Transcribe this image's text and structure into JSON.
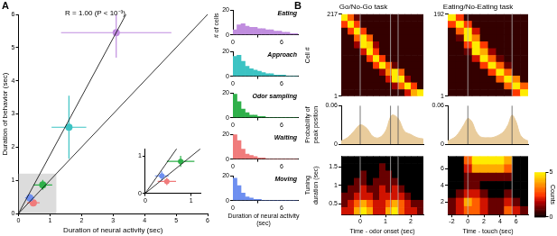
{
  "chart_data": [
    {
      "type": "scatter",
      "panel": "A",
      "xlabel": "Duration of neural activity (sec)",
      "ylabel": "Duration of behavior (sec)",
      "xlim": [
        0,
        6
      ],
      "ylim": [
        0,
        6
      ],
      "xticks": [
        0,
        1,
        2,
        3,
        4,
        5,
        6
      ],
      "yticks": [
        0,
        1,
        2,
        3,
        4,
        5,
        6
      ],
      "x": [
        3.1,
        1.6,
        0.77,
        0.47,
        0.36
      ],
      "values": [
        5.45,
        2.6,
        0.86,
        0.32,
        0.47
      ],
      "x_err": [
        1.75,
        0.55,
        0.3,
        0.2,
        0.15
      ],
      "y_err": [
        0.75,
        0.95,
        0.15,
        0.1,
        0.12
      ],
      "colors": [
        "#c08ddf",
        "#3cc3c3",
        "#2fb04a",
        "#f07b7b",
        "#6e8ff0"
      ],
      "annotations": [
        "R = 1.00 (P < 10⁻³)"
      ],
      "lines": [
        {
          "slope": 1,
          "intercept": 0
        },
        {
          "slope": 1.76,
          "intercept": 0
        }
      ],
      "inset": {
        "xlim": [
          0,
          1.2
        ],
        "ylim": [
          0,
          1.2
        ],
        "xticks": [
          0,
          1
        ],
        "yticks": [
          0,
          1
        ]
      }
    },
    {
      "type": "histogram",
      "title": "Eating",
      "ylabel": "# of cells",
      "color": "#c08ddf",
      "bins": [
        0,
        0.5,
        1,
        1.5,
        2,
        2.5,
        3,
        3.5,
        4,
        4.5,
        5,
        5.5,
        6,
        6.5,
        7,
        7.5,
        8
      ],
      "counts": [
        4,
        8,
        9,
        7,
        6,
        6,
        5,
        5,
        4,
        4,
        3,
        3,
        2,
        2,
        1,
        1
      ],
      "xlim": [
        0,
        8
      ],
      "ylim": [
        0,
        20
      ],
      "xticks": [
        0,
        6
      ],
      "yticks": [
        0,
        20
      ]
    },
    {
      "type": "histogram",
      "title": "Approach",
      "color": "#3cc3c3",
      "bins": [
        0,
        0.5,
        1,
        1.5,
        2,
        2.5,
        3,
        3.5,
        4,
        4.5,
        5,
        5.5,
        6,
        6.5,
        7,
        7.5,
        8
      ],
      "counts": [
        16,
        17,
        12,
        8,
        6,
        5,
        4,
        3,
        2,
        2,
        1,
        1,
        1,
        0,
        0,
        0
      ],
      "xlim": [
        0,
        8
      ],
      "ylim": [
        0,
        20
      ],
      "xticks": [
        0,
        6
      ],
      "yticks": [
        0,
        20
      ]
    },
    {
      "type": "histogram",
      "title": "Odor sampling",
      "color": "#2fb04a",
      "bins": [
        0,
        0.5,
        1,
        1.5,
        2,
        2.5,
        3,
        3.5,
        4,
        4.5,
        5,
        5.5,
        6,
        6.5,
        7,
        7.5,
        8
      ],
      "counts": [
        19,
        13,
        7,
        4,
        2,
        2,
        1,
        1,
        0,
        0,
        0,
        0,
        0,
        0,
        0,
        0
      ],
      "xlim": [
        0,
        8
      ],
      "ylim": [
        0,
        20
      ],
      "xticks": [
        0,
        6
      ],
      "yticks": [
        0,
        20
      ]
    },
    {
      "type": "histogram",
      "title": "Waiting",
      "color": "#f07b7b",
      "bins": [
        0,
        0.5,
        1,
        1.5,
        2,
        2.5,
        3,
        3.5,
        4,
        4.5,
        5,
        5.5,
        6,
        6.5,
        7,
        7.5,
        8
      ],
      "counts": [
        20,
        15,
        8,
        4,
        3,
        2,
        1,
        1,
        0,
        0,
        0,
        0,
        0,
        0,
        0,
        0
      ],
      "xlim": [
        0,
        8
      ],
      "ylim": [
        0,
        20
      ],
      "xticks": [
        0,
        6
      ],
      "yticks": [
        0,
        20
      ]
    },
    {
      "type": "histogram",
      "title": "Moving",
      "xlabel": "Duration of neural activity (sec)",
      "color": "#6e8ff0",
      "bins": [
        0,
        0.5,
        1,
        1.5,
        2,
        2.5,
        3,
        3.5,
        4,
        4.5,
        5,
        5.5,
        6,
        6.5,
        7,
        7.5,
        8
      ],
      "counts": [
        18,
        12,
        6,
        3,
        2,
        1,
        1,
        0,
        0,
        0,
        0,
        0,
        0,
        0,
        0,
        0
      ],
      "xlim": [
        0,
        8
      ],
      "ylim": [
        0,
        20
      ],
      "xticks": [
        0,
        6
      ],
      "yticks": [
        0,
        20
      ]
    },
    {
      "type": "heatmap",
      "panel": "B",
      "title": "Go/No-Go task",
      "ylabel": "Cell #",
      "xlim": [
        -0.75,
        2.5
      ],
      "ylim": [
        1,
        217
      ],
      "yticks": [
        1,
        217
      ],
      "tick_labels": "y",
      "clim": [
        0,
        1
      ],
      "event_lines": [
        0,
        1.2,
        1.5
      ],
      "cells": [
        [
          1,
          0.6,
          0.2,
          0.1,
          0.1,
          0.1,
          0.1,
          0.1,
          0.1,
          0.1,
          0.1,
          0.1,
          0.1
        ],
        [
          0.5,
          1,
          0.5,
          0.1,
          0.1,
          0.1,
          0.1,
          0.1,
          0.1,
          0.1,
          0.1,
          0.1,
          0.1
        ],
        [
          0.1,
          0.5,
          1,
          0.5,
          0.1,
          0.1,
          0.1,
          0.1,
          0.1,
          0.1,
          0.1,
          0.1,
          0.1
        ],
        [
          0.1,
          0.1,
          0.6,
          1,
          0.6,
          0.1,
          0.1,
          0.1,
          0.1,
          0.1,
          0.1,
          0.1,
          0.1
        ],
        [
          0.1,
          0.1,
          0.3,
          1,
          0.9,
          0.3,
          0.1,
          0.1,
          0.1,
          0.1,
          0.1,
          0.1,
          0.1
        ],
        [
          0.1,
          0.1,
          0.1,
          0.4,
          1,
          0.5,
          0.1,
          0.1,
          0.1,
          0.1,
          0.1,
          0.1,
          0.1
        ],
        [
          0.1,
          0.1,
          0.1,
          0.1,
          0.5,
          1,
          0.5,
          0.1,
          0.1,
          0.1,
          0.1,
          0.1,
          0.1
        ],
        [
          0.1,
          0.1,
          0.1,
          0.1,
          0.1,
          0.5,
          1,
          0.6,
          0.2,
          0.1,
          0.1,
          0.1,
          0.1
        ],
        [
          0.1,
          0.1,
          0.1,
          0.1,
          0.1,
          0.1,
          0.3,
          0.7,
          1,
          0.6,
          0.1,
          0.1,
          0.1
        ],
        [
          0.1,
          0.1,
          0.1,
          0.1,
          0.1,
          0.1,
          0.1,
          0.4,
          1,
          1,
          0.3,
          0.1,
          0.1
        ],
        [
          0.1,
          0.1,
          0.1,
          0.1,
          0.1,
          0.1,
          0.1,
          0.1,
          0.3,
          0.6,
          1,
          0.5,
          0.1
        ],
        [
          0.1,
          0.1,
          0.1,
          0.1,
          0.1,
          0.1,
          0.1,
          0.1,
          0.1,
          0.1,
          0.4,
          0.8,
          1
        ]
      ]
    },
    {
      "type": "heatmap",
      "title": "Eating/No-Eating task",
      "xlim": [
        -2.5,
        7.5
      ],
      "ylim": [
        1,
        192
      ],
      "yticks": [
        1,
        192
      ],
      "tick_labels": "y",
      "clim": [
        0,
        1
      ],
      "event_lines": [
        0,
        5.5
      ],
      "cells": [
        [
          1,
          0.5,
          0.1,
          0.1,
          0.1,
          0.1,
          0.1,
          0.1,
          0.1,
          0.1
        ],
        [
          0.5,
          1,
          0.5,
          0.1,
          0.1,
          0.1,
          0.1,
          0.1,
          0.1,
          0.1
        ],
        [
          0.1,
          0.6,
          1,
          0.4,
          0.1,
          0.1,
          0.1,
          0.1,
          0.1,
          0.1
        ],
        [
          0.1,
          0.2,
          1,
          0.7,
          0.1,
          0.1,
          0.1,
          0.1,
          0.1,
          0.1
        ],
        [
          0.1,
          0.1,
          0.5,
          1,
          0.5,
          0.1,
          0.1,
          0.1,
          0.1,
          0.1
        ],
        [
          0.1,
          0.1,
          0.2,
          1,
          0.8,
          0.3,
          0.1,
          0.1,
          0.1,
          0.1
        ],
        [
          0.1,
          0.1,
          0.1,
          0.4,
          1,
          0.6,
          0.2,
          0.1,
          0.1,
          0.1
        ],
        [
          0.1,
          0.1,
          0.1,
          0.1,
          0.5,
          1,
          0.6,
          0.2,
          0.1,
          0.1
        ],
        [
          0.1,
          0.1,
          0.1,
          0.1,
          0.1,
          0.5,
          1,
          0.6,
          0.1,
          0.1
        ],
        [
          0.1,
          0.1,
          0.1,
          0.1,
          0.1,
          0.1,
          0.6,
          1,
          0.7,
          0.1
        ],
        [
          0.1,
          0.1,
          0.1,
          0.1,
          0.1,
          0.1,
          0.1,
          0.6,
          1,
          0.6
        ],
        [
          0.1,
          0.1,
          0.1,
          0.1,
          0.1,
          0.1,
          0.1,
          0.1,
          0.5,
          1
        ]
      ]
    },
    {
      "type": "area",
      "ylabel": "Probability of peak position",
      "xlim": [
        -0.75,
        2.5
      ],
      "ylim": [
        0,
        0.06
      ],
      "yticks": [
        0,
        0.06
      ],
      "tick_labels": "y",
      "color": "#e9cc9c",
      "event_lines": [
        0,
        1.2,
        1.5
      ],
      "x": [
        -0.75,
        -0.5,
        -0.25,
        0,
        0.25,
        0.5,
        0.75,
        1,
        1.25,
        1.5,
        1.75,
        2,
        2.25,
        2.5
      ],
      "values": [
        0.005,
        0.01,
        0.02,
        0.03,
        0.025,
        0.012,
        0.01,
        0.02,
        0.045,
        0.04,
        0.02,
        0.015,
        0.01,
        0.008
      ]
    },
    {
      "type": "area",
      "xlim": [
        -2.5,
        7.5
      ],
      "ylim": [
        0,
        0.06
      ],
      "yticks": [
        0,
        0.06
      ],
      "tick_labels": "y",
      "color": "#e9cc9c",
      "event_lines": [
        0,
        5.5
      ],
      "x": [
        -2.5,
        -2,
        -1.5,
        -1,
        -0.5,
        0,
        0.5,
        1,
        1.5,
        2,
        2.5,
        3,
        3.5,
        4,
        4.5,
        5,
        5.5,
        6,
        6.5,
        7,
        7.5
      ],
      "values": [
        0.005,
        0.008,
        0.012,
        0.02,
        0.03,
        0.04,
        0.035,
        0.02,
        0.012,
        0.01,
        0.01,
        0.01,
        0.012,
        0.015,
        0.02,
        0.03,
        0.045,
        0.035,
        0.015,
        0.008,
        0.005
      ]
    },
    {
      "type": "heatmap",
      "ylabel": "Tuning duration (sec)",
      "xlabel": "Time - odor onset (sec)",
      "xlim": [
        -0.75,
        2.5
      ],
      "ylim": [
        0.2,
        1.8
      ],
      "xticks": [
        0,
        1,
        2
      ],
      "yticks": [
        0.5,
        1,
        1.5
      ],
      "clim": [
        0,
        5
      ],
      "event_lines": [
        0,
        1.2,
        1.5
      ],
      "cells": [
        [
          0,
          0,
          0,
          0,
          0,
          0,
          0,
          0,
          0,
          0,
          0,
          0,
          0
        ],
        [
          0,
          0,
          0,
          0,
          0,
          0,
          1,
          0,
          0,
          0,
          0,
          0,
          0
        ],
        [
          0,
          0,
          0,
          1,
          0,
          0,
          1,
          1,
          0,
          0,
          0,
          0,
          0
        ],
        [
          0,
          0,
          1,
          1,
          0,
          1,
          1,
          1,
          1,
          0,
          0,
          0,
          0
        ],
        [
          0,
          1,
          1,
          2,
          1,
          1,
          2,
          1,
          2,
          1,
          0,
          0,
          0
        ],
        [
          1,
          1,
          2,
          2,
          2,
          1,
          2,
          2,
          2,
          2,
          1,
          0,
          0
        ],
        [
          1,
          2,
          3,
          4,
          3,
          2,
          2,
          3,
          4,
          3,
          2,
          1,
          1
        ],
        [
          2,
          2,
          4,
          5,
          4,
          2,
          2,
          4,
          5,
          3,
          2,
          2,
          1
        ]
      ]
    },
    {
      "type": "heatmap",
      "xlabel": "Time - touch (sec)",
      "xlim": [
        -2.5,
        7.5
      ],
      "ylim": [
        0.5,
        7.5
      ],
      "xticks": [
        -2,
        0,
        2,
        4,
        6
      ],
      "yticks": [
        2,
        4,
        6
      ],
      "clim": [
        0,
        5
      ],
      "event_lines": [
        0,
        5.5
      ],
      "cells": [
        [
          0,
          0,
          3,
          5,
          5,
          5,
          5,
          4,
          0,
          0
        ],
        [
          0,
          0,
          2,
          4,
          4,
          4,
          4,
          3,
          0,
          0
        ],
        [
          0,
          0,
          1,
          1,
          1,
          1,
          1,
          1,
          0,
          0
        ],
        [
          0,
          0,
          1,
          1,
          0,
          0,
          0,
          0,
          0,
          0
        ],
        [
          0,
          1,
          2,
          2,
          1,
          0,
          0,
          1,
          0,
          0
        ],
        [
          1,
          2,
          4,
          3,
          2,
          1,
          1,
          2,
          1,
          0
        ],
        [
          1,
          2,
          3,
          3,
          2,
          1,
          1,
          3,
          2,
          1
        ]
      ]
    },
    {
      "type": "colorbar",
      "title": "Counts",
      "ylim": [
        0,
        5
      ],
      "yticks": [
        0,
        5
      ]
    }
  ]
}
